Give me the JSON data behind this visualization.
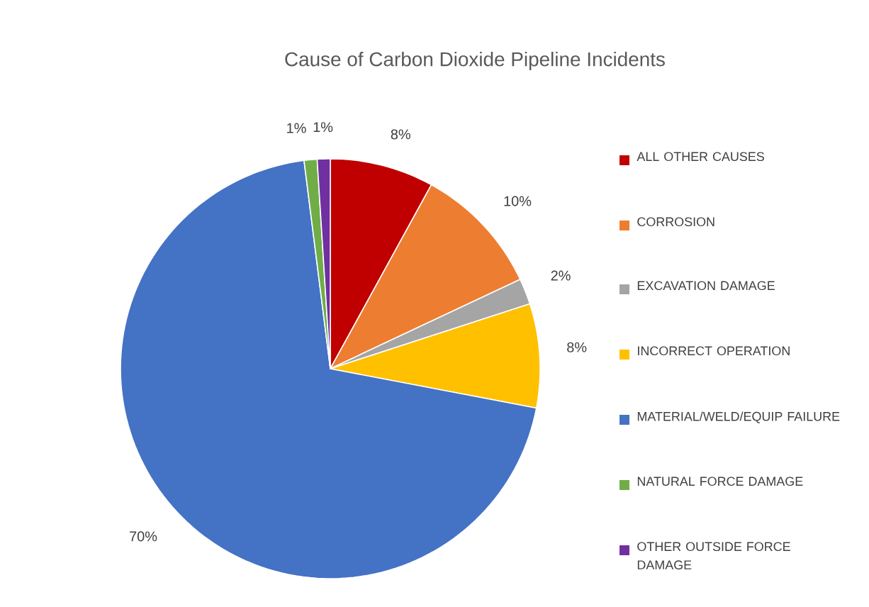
{
  "chart_data": {
    "type": "pie",
    "title": "Cause of Carbon Dioxide Pipeline Incidents",
    "categories": [
      "ALL OTHER CAUSES",
      "CORROSION",
      "EXCAVATION DAMAGE",
      "INCORRECT OPERATION",
      "MATERIAL/WELD/EQUIP FAILURE",
      "NATURAL FORCE DAMAGE",
      "OTHER OUTSIDE FORCE DAMAGE"
    ],
    "values": [
      8,
      10,
      2,
      8,
      70,
      1,
      1
    ],
    "value_labels": [
      "8%",
      "10%",
      "2%",
      "8%",
      "70%",
      "1%",
      "1%"
    ],
    "colors": [
      "#c00000",
      "#ed7d31",
      "#a5a5a5",
      "#ffc000",
      "#4472c4",
      "#70ad47",
      "#7030a0"
    ],
    "legend": "right"
  }
}
